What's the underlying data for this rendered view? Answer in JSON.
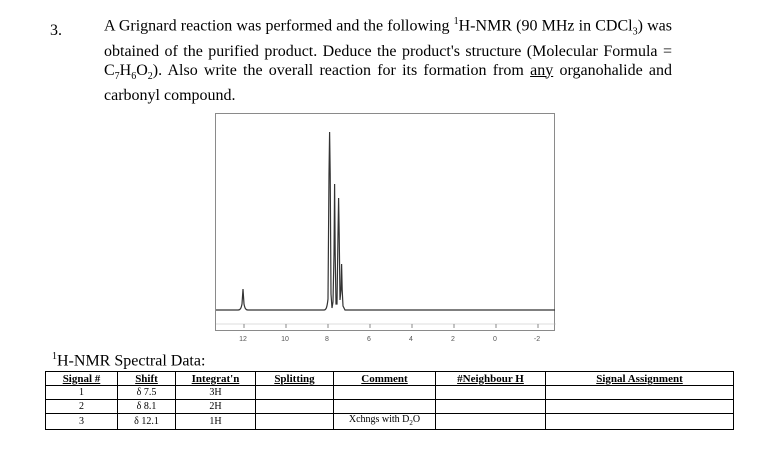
{
  "question": {
    "number": "3.",
    "line1_pre": "A Grignard reaction was performed and the following ",
    "line1_sup": "1",
    "line1_post": "H-NMR (90 MHz in CDCl",
    "line1_sub": "3",
    "line1_end": ")",
    "line2": "was obtained of the purified product.  Deduce the product's structure (Molecular",
    "line3_pre": "Formula = C",
    "f_sub1": "7",
    "f_h": "H",
    "f_sub2": "6",
    "f_o": "O",
    "f_sub3": "2",
    "line3_post": ").  Also write the overall reaction for its formation from ",
    "line3_u": "any",
    "line4": "organohalide and carbonyl compound."
  },
  "spectrum": {
    "x_ticks": [
      "12",
      "10",
      "8",
      "6",
      "4",
      "2",
      "0",
      "-2"
    ],
    "line_color": "#333333"
  },
  "spectral_title": {
    "sup": "1",
    "text": "H-NMR Spectral Data:"
  },
  "table": {
    "headers": [
      "Signal #",
      "Shift",
      "Integrat'n",
      "Splitting",
      "Comment",
      "#Neighbour H",
      "Signal Assignment"
    ],
    "rows": [
      {
        "signal": "1",
        "shift": "δ 7.5",
        "integration": "3H",
        "splitting": "",
        "comment_pre": "",
        "comment_sub": "",
        "comment_post": "",
        "neighbour": "",
        "assignment": ""
      },
      {
        "signal": "2",
        "shift": "δ 8.1",
        "integration": "2H",
        "splitting": "",
        "comment_pre": "",
        "comment_sub": "",
        "comment_post": "",
        "neighbour": "",
        "assignment": ""
      },
      {
        "signal": "3",
        "shift": "δ 12.1",
        "integration": "1H",
        "splitting": "",
        "comment_pre": "Xchngs with D",
        "comment_sub": "2",
        "comment_post": "O",
        "neighbour": "",
        "assignment": ""
      }
    ]
  }
}
